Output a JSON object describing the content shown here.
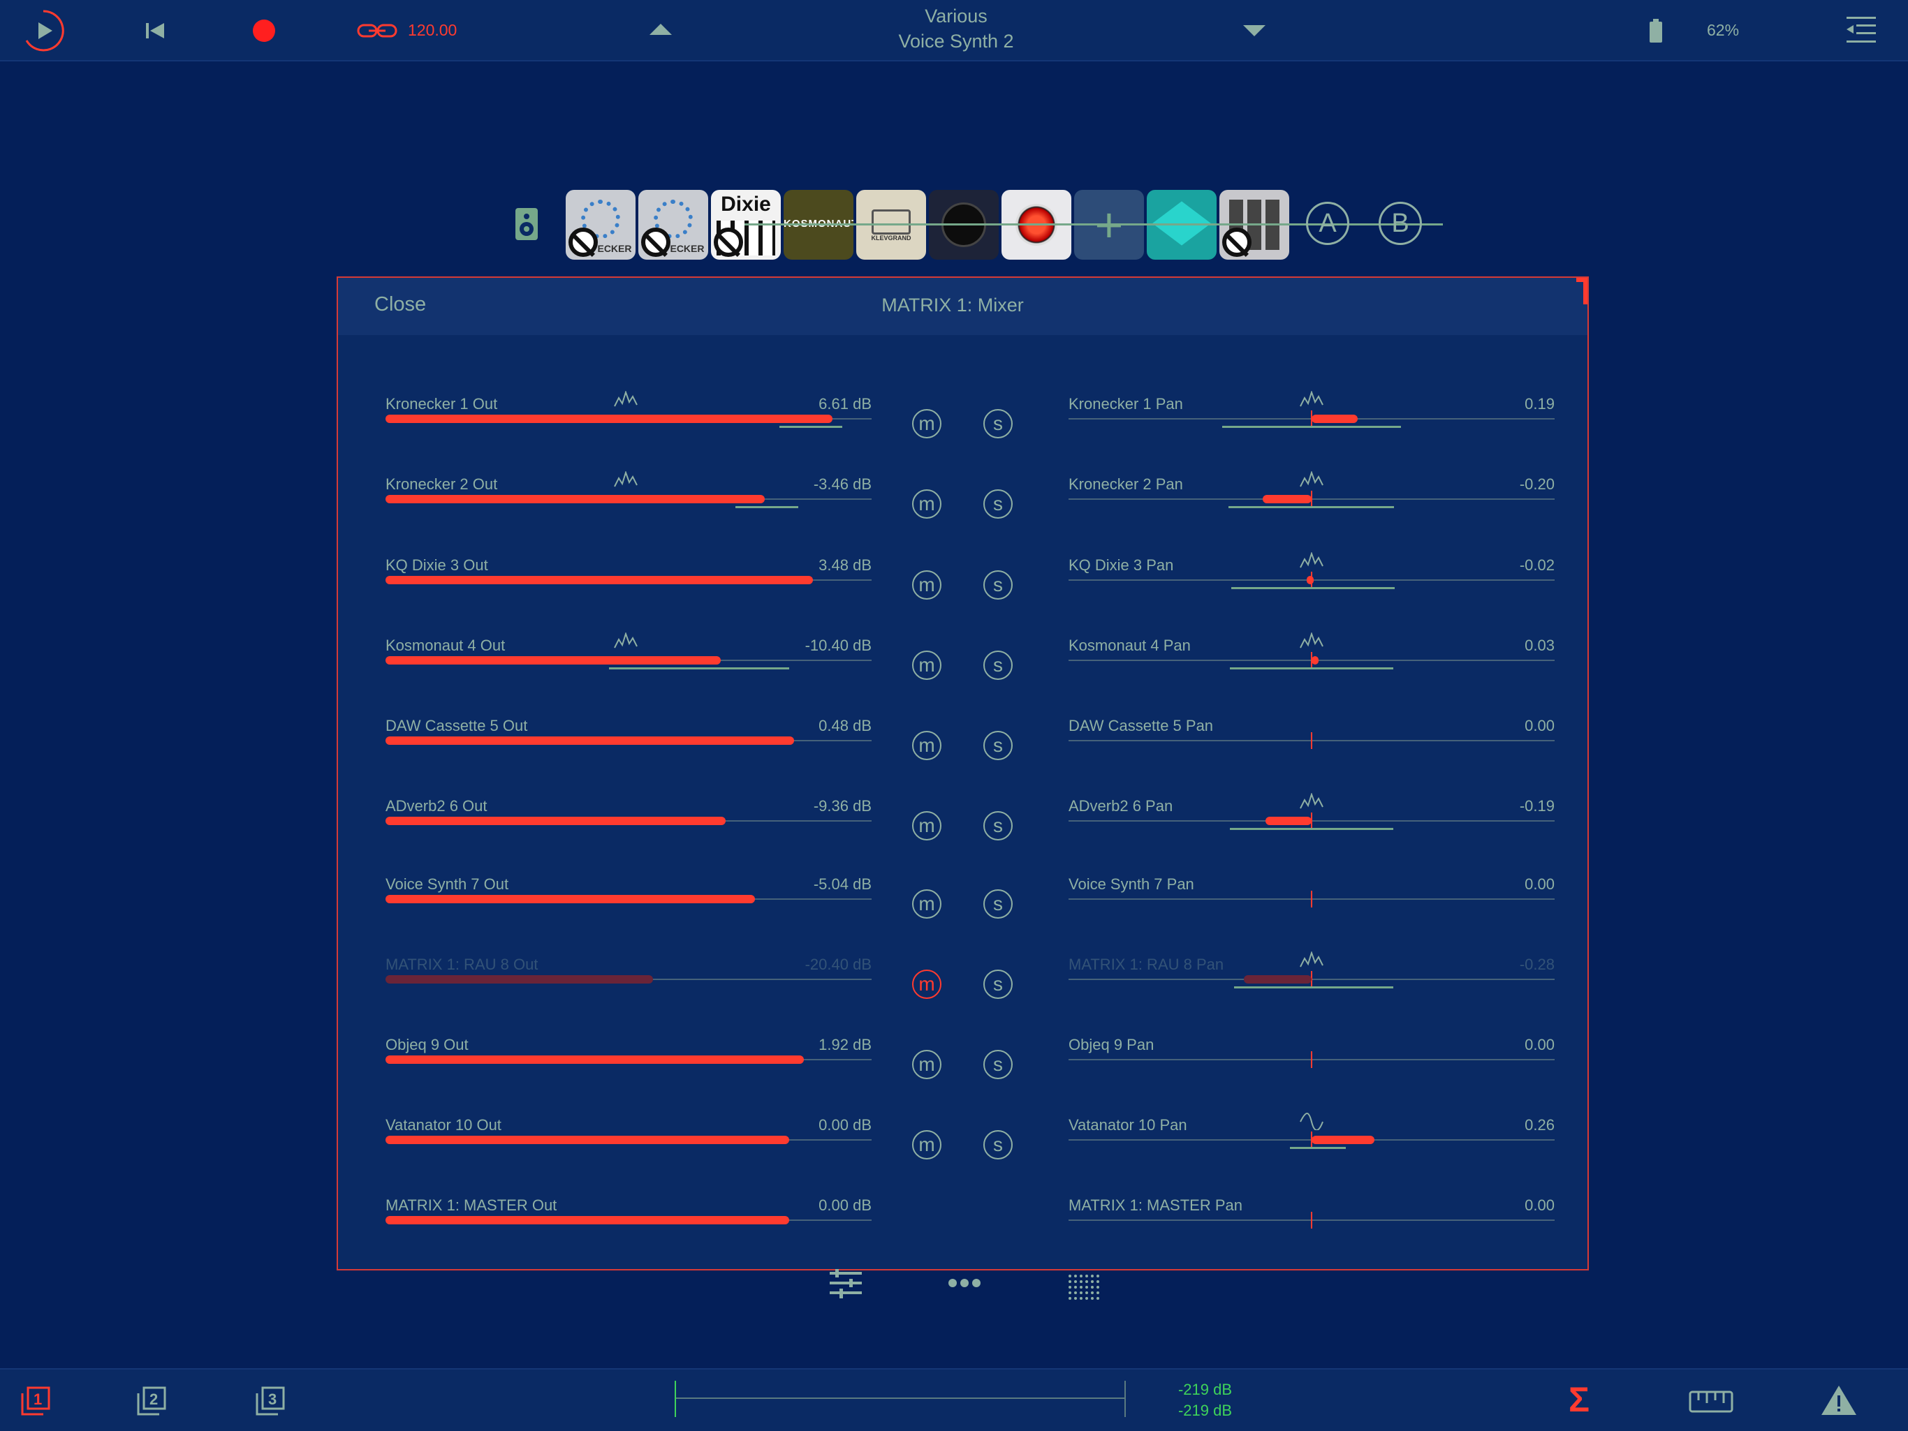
{
  "transport": {
    "tempo": "120.00",
    "song_category": "Various",
    "song_name": "Voice Synth 2",
    "battery": "62%"
  },
  "plugins": [
    {
      "name": "Kronecker",
      "label": "ECKER",
      "bypassed": true
    },
    {
      "name": "Kronecker",
      "label": "ECKER",
      "bypassed": true
    },
    {
      "name": "Dixie",
      "label": "Dixie",
      "bypassed": true
    },
    {
      "name": "Kosmonaut",
      "label": "KOSMONAUT",
      "bypassed": false
    },
    {
      "name": "DAW Cassette",
      "label": "KLEVGRAND",
      "bypassed": false
    },
    {
      "name": "ADverb2",
      "label": "",
      "bypassed": false
    },
    {
      "name": "Voice Synth",
      "label": "",
      "bypassed": false
    },
    {
      "name": "Add",
      "label": "+",
      "bypassed": false
    },
    {
      "name": "Objeq",
      "label": "",
      "bypassed": false
    },
    {
      "name": "Vatanator",
      "label": "",
      "bypassed": true
    }
  ],
  "buses": [
    "A",
    "B"
  ],
  "panel": {
    "close_label": "Close",
    "title": "MATRIX 1:  Mixer"
  },
  "mute_label": "m",
  "solo_label": "s",
  "rows": [
    {
      "out_label": "Kronecker 1 Out",
      "out_value": "6.61 dB",
      "level": 0.92,
      "level_mod": [
        0.81,
        0.94
      ],
      "pan_label": "Kronecker 1 Pan",
      "pan_value": "0.19",
      "pan": 0.19,
      "pan_mod": [
        -0.67,
        0.67
      ],
      "out_mod_icon": "lfo-random",
      "pan_mod_icon": "lfo-random",
      "muted": false,
      "dim": false
    },
    {
      "out_label": "Kronecker 2 Out",
      "out_value": "-3.46 dB",
      "level": 0.78,
      "level_mod": [
        0.72,
        0.85
      ],
      "pan_label": "Kronecker 2 Pan",
      "pan_value": "-0.20",
      "pan": -0.2,
      "pan_mod": [
        -0.62,
        0.62
      ],
      "out_mod_icon": "lfo-random",
      "pan_mod_icon": "lfo-random",
      "muted": false,
      "dim": false
    },
    {
      "out_label": "KQ Dixie 3 Out",
      "out_value": "3.48 dB",
      "level": 0.88,
      "level_mod": null,
      "pan_label": "KQ Dixie 3 Pan",
      "pan_value": "-0.02",
      "pan": -0.02,
      "pan_mod": [
        -0.6,
        0.62
      ],
      "out_mod_icon": "",
      "pan_mod_icon": "lfo-random",
      "muted": false,
      "dim": false
    },
    {
      "out_label": "Kosmonaut 4 Out",
      "out_value": "-10.40 dB",
      "level": 0.69,
      "level_mod": [
        0.46,
        0.83
      ],
      "pan_label": "Kosmonaut 4 Pan",
      "pan_value": "0.03",
      "pan": 0.03,
      "pan_mod": [
        -0.61,
        0.61
      ],
      "out_mod_icon": "lfo-random",
      "pan_mod_icon": "lfo-random",
      "muted": false,
      "dim": false
    },
    {
      "out_label": "DAW Cassette 5 Out",
      "out_value": "0.48 dB",
      "level": 0.84,
      "level_mod": null,
      "pan_label": "DAW Cassette 5 Pan",
      "pan_value": "0.00",
      "pan": 0.0,
      "pan_mod": null,
      "out_mod_icon": "",
      "pan_mod_icon": "",
      "muted": false,
      "dim": false
    },
    {
      "out_label": "ADverb2 6 Out",
      "out_value": "-9.36 dB",
      "level": 0.7,
      "level_mod": null,
      "pan_label": "ADverb2 6 Pan",
      "pan_value": "-0.19",
      "pan": -0.19,
      "pan_mod": [
        -0.61,
        0.61
      ],
      "out_mod_icon": "",
      "pan_mod_icon": "lfo-random",
      "muted": false,
      "dim": false
    },
    {
      "out_label": "Voice Synth 7 Out",
      "out_value": "-5.04 dB",
      "level": 0.76,
      "level_mod": null,
      "pan_label": "Voice Synth 7 Pan",
      "pan_value": "0.00",
      "pan": 0.0,
      "pan_mod": null,
      "out_mod_icon": "",
      "pan_mod_icon": "",
      "muted": false,
      "dim": false
    },
    {
      "out_label": "MATRIX 1: RAU 8 Out",
      "out_value": "-20.40 dB",
      "level": 0.55,
      "level_mod": null,
      "pan_label": "MATRIX 1: RAU 8 Pan",
      "pan_value": "-0.28",
      "pan": -0.28,
      "pan_mod": [
        -0.58,
        0.61
      ],
      "out_mod_icon": "",
      "pan_mod_icon": "lfo-random",
      "muted": true,
      "dim": true
    },
    {
      "out_label": "Objeq 9 Out",
      "out_value": "1.92 dB",
      "level": 0.86,
      "level_mod": null,
      "pan_label": "Objeq 9 Pan",
      "pan_value": "0.00",
      "pan": 0.0,
      "pan_mod": null,
      "out_mod_icon": "",
      "pan_mod_icon": "",
      "muted": false,
      "dim": false
    },
    {
      "out_label": "Vatanator 10 Out",
      "out_value": "0.00 dB",
      "level": 0.83,
      "level_mod": null,
      "pan_label": "Vatanator 10 Pan",
      "pan_value": "0.26",
      "pan": 0.26,
      "pan_mod": [
        -0.16,
        0.26
      ],
      "out_mod_icon": "",
      "pan_mod_icon": "lfo-sine",
      "muted": false,
      "dim": false
    },
    {
      "out_label": "MATRIX 1: MASTER Out",
      "out_value": "0.00 dB",
      "level": 0.83,
      "level_mod": null,
      "pan_label": "MATRIX 1: MASTER Pan",
      "pan_value": "0.00",
      "pan": 0.0,
      "pan_mod": null,
      "out_mod_icon": "",
      "pan_mod_icon": "",
      "muted": null,
      "dim": false
    }
  ],
  "meter": {
    "left_db": "-219 dB",
    "right_db": "-219 dB"
  },
  "scenes": [
    "1",
    "2",
    "3"
  ],
  "colors": {
    "background": "#041f59",
    "accent": "#ff3b2f",
    "text": "#8fb0a4",
    "meter_text": "#3fd35a"
  }
}
